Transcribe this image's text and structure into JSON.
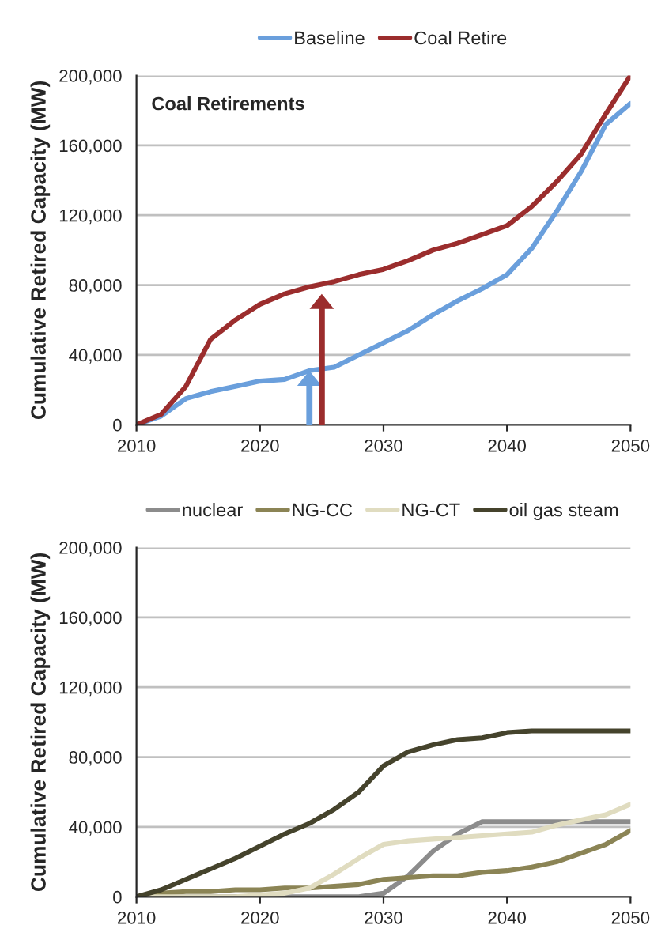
{
  "chart_data": [
    {
      "type": "line",
      "title": "Coal Retirements",
      "ylabel": "Cumulative Retired Capacity (MW)",
      "x": [
        2010,
        2012,
        2014,
        2016,
        2018,
        2020,
        2022,
        2024,
        2026,
        2028,
        2030,
        2032,
        2034,
        2036,
        2038,
        2040,
        2042,
        2044,
        2046,
        2048,
        2050
      ],
      "series": [
        {
          "name": "Baseline",
          "color": "#6a9fdc",
          "values": [
            0,
            5000,
            15000,
            19000,
            22000,
            25000,
            26000,
            31000,
            33000,
            40000,
            47000,
            54000,
            63000,
            71000,
            78000,
            86000,
            101000,
            122000,
            145000,
            172000,
            184000
          ]
        },
        {
          "name": "Coal Retire",
          "color": "#9b2d2d",
          "values": [
            0,
            6000,
            22000,
            49000,
            60000,
            69000,
            75000,
            79000,
            82000,
            86000,
            89000,
            94000,
            100000,
            104000,
            109000,
            114000,
            125000,
            139000,
            155000,
            178000,
            200000
          ]
        }
      ],
      "xlim": [
        2010,
        2050
      ],
      "ylim": [
        0,
        200000
      ],
      "xticks": [
        2010,
        2020,
        2030,
        2040,
        2050
      ],
      "yticks": [
        0,
        {
          "value": 40000,
          "label": "40,000"
        },
        {
          "value": 80000,
          "label": "80,000"
        },
        {
          "value": 120000,
          "label": "120,000"
        },
        {
          "value": 160000,
          "label": "160,000"
        },
        {
          "value": 200000,
          "label": "200,000"
        }
      ],
      "grid": "y",
      "legend": "top"
    },
    {
      "type": "line",
      "ylabel": "Cumulative Retired Capacity (MW)",
      "x": [
        2010,
        2012,
        2014,
        2016,
        2018,
        2020,
        2022,
        2024,
        2026,
        2028,
        2030,
        2032,
        2034,
        2036,
        2038,
        2040,
        2042,
        2044,
        2046,
        2048,
        2050
      ],
      "series": [
        {
          "name": "nuclear",
          "color": "#8c8c8c",
          "values": [
            0,
            0,
            0,
            0,
            0,
            0,
            0,
            0,
            0,
            0,
            2000,
            12000,
            26000,
            36000,
            43000,
            43000,
            43000,
            43000,
            43000,
            43000,
            43000
          ]
        },
        {
          "name": "NG-CC",
          "color": "#8b8455",
          "values": [
            0,
            2000,
            3000,
            3000,
            4000,
            4000,
            5000,
            5000,
            6000,
            7000,
            10000,
            11000,
            12000,
            12000,
            14000,
            15000,
            17000,
            20000,
            25000,
            30000,
            38000
          ]
        },
        {
          "name": "NG-CT",
          "color": "#e0dcc0",
          "values": [
            0,
            0,
            0,
            0,
            0,
            1000,
            2000,
            5000,
            13000,
            22000,
            30000,
            32000,
            33000,
            34000,
            35000,
            36000,
            37000,
            41000,
            44000,
            47000,
            53000
          ]
        },
        {
          "name": "oil gas steam",
          "color": "#45432c",
          "values": [
            0,
            4000,
            10000,
            16000,
            22000,
            29000,
            36000,
            42000,
            50000,
            60000,
            75000,
            83000,
            87000,
            90000,
            91000,
            94000,
            95000,
            95000,
            95000,
            95000,
            95000
          ]
        }
      ],
      "xlim": [
        2010,
        2050
      ],
      "ylim": [
        0,
        200000
      ],
      "xticks": [
        2010,
        2020,
        2030,
        2040,
        2050
      ],
      "yticks": [
        0,
        {
          "value": 40000,
          "label": "40,000"
        },
        {
          "value": 80000,
          "label": "80,000"
        },
        {
          "value": 120000,
          "label": "120,000"
        },
        {
          "value": 160000,
          "label": "160,000"
        },
        {
          "value": 200000,
          "label": "200,000"
        }
      ],
      "grid": "y",
      "legend": "top"
    }
  ]
}
